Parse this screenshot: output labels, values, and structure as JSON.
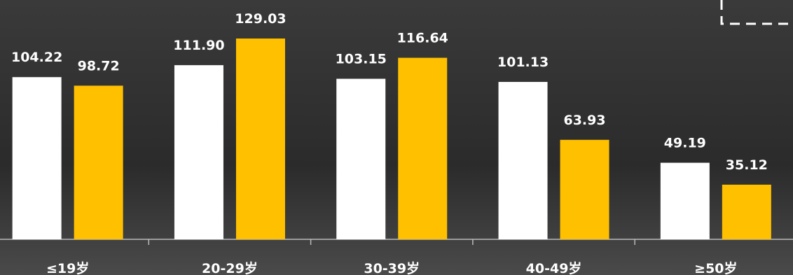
{
  "chart_data": {
    "type": "bar",
    "categories": [
      "≤19岁",
      "20-29岁",
      "30-39岁",
      "40-49岁",
      "≥50岁"
    ],
    "series": [
      {
        "color": "#ffffff",
        "values": [
          104.22,
          111.9,
          103.15,
          101.13,
          49.19
        ],
        "value_labels": [
          "104.22",
          "111.90",
          "103.15",
          "101.13",
          "49.19"
        ]
      },
      {
        "color": "#ffc000",
        "values": [
          98.72,
          129.03,
          116.64,
          63.93,
          35.12
        ],
        "value_labels": [
          "98.72",
          "129.03",
          "116.64",
          "63.93",
          "35.12"
        ]
      }
    ],
    "ylim": [
      0,
      150
    ]
  }
}
